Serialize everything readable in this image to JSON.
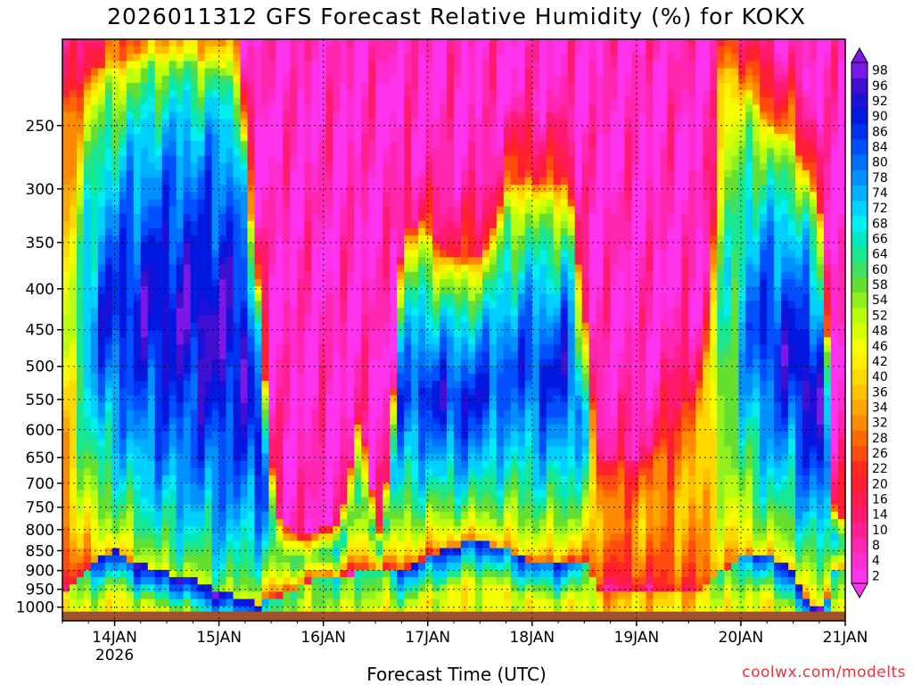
{
  "chart_data": {
    "type": "heatmap",
    "title": "2026011312 GFS Forecast Relative Humidity (%) for KOKX",
    "xlabel": "Forecast Time (UTC)",
    "ylabel": "",
    "x_ticks": [
      "14JAN",
      "15JAN",
      "16JAN",
      "17JAN",
      "18JAN",
      "19JAN",
      "20JAN",
      "21JAN"
    ],
    "x_year": "2026",
    "x_range_days": [
      13.5,
      21.0
    ],
    "y_scale": "log-pressure",
    "y_range": [
      1040,
      195
    ],
    "y_ticks": [
      250,
      300,
      350,
      400,
      450,
      500,
      550,
      600,
      650,
      700,
      750,
      800,
      850,
      900,
      950,
      1000
    ],
    "grid": true,
    "colorbar_levels": [
      2,
      4,
      8,
      10,
      14,
      16,
      20,
      22,
      26,
      28,
      32,
      34,
      36,
      40,
      42,
      46,
      48,
      52,
      54,
      58,
      60,
      64,
      66,
      68,
      72,
      74,
      78,
      80,
      84,
      86,
      90,
      92,
      96,
      98
    ],
    "colorbar_colors": [
      "#ff33ee",
      "#ff2ccf",
      "#ff26b0",
      "#ff1f8f",
      "#ff1a6e",
      "#ff1a4f",
      "#ff1f33",
      "#ff2a1f",
      "#ff4a10",
      "#ff6a00",
      "#ff8a00",
      "#ffa500",
      "#ffc000",
      "#ffd800",
      "#fff000",
      "#f4ff00",
      "#d8ff00",
      "#b8ff10",
      "#90f020",
      "#66e030",
      "#40e060",
      "#1ae890",
      "#00e8c0",
      "#00f0f0",
      "#00d0ff",
      "#00b0ff",
      "#0090ff",
      "#0070ff",
      "#0050ff",
      "#0030f0",
      "#0018e0",
      "#1a10d8",
      "#4010d0",
      "#7a18e8"
    ],
    "ground_color": "#a0522d",
    "columns": [
      {
        "d": 13.55,
        "lo": 12,
        "hi": 42,
        "wet_bot": 950,
        "wet_top": 230
      },
      {
        "d": 13.7,
        "lo": 18,
        "hi": 70,
        "wet_bot": 900,
        "wet_top": 220
      },
      {
        "d": 13.85,
        "lo": 24,
        "hi": 84,
        "wet_bot": 870,
        "wet_top": 210
      },
      {
        "d": 14.0,
        "lo": 30,
        "hi": 88,
        "wet_bot": 850,
        "wet_top": 210
      },
      {
        "d": 14.2,
        "lo": 34,
        "hi": 90,
        "wet_bot": 880,
        "wet_top": 205
      },
      {
        "d": 14.4,
        "lo": 40,
        "hi": 92,
        "wet_bot": 900,
        "wet_top": 205
      },
      {
        "d": 14.6,
        "lo": 44,
        "hi": 92,
        "wet_bot": 910,
        "wet_top": 205
      },
      {
        "d": 14.8,
        "lo": 40,
        "hi": 94,
        "wet_bot": 930,
        "wet_top": 205
      },
      {
        "d": 15.0,
        "lo": 46,
        "hi": 94,
        "wet_bot": 960,
        "wet_top": 210
      },
      {
        "d": 15.2,
        "lo": 44,
        "hi": 92,
        "wet_bot": 970,
        "wet_top": 220
      },
      {
        "d": 15.4,
        "lo": 28,
        "hi": 90,
        "wet_bot": 990,
        "wet_top": 420
      },
      {
        "d": 15.55,
        "lo": 10,
        "hi": 60,
        "wet_bot": 970,
        "wet_top": 760
      },
      {
        "d": 15.75,
        "lo": 4,
        "hi": 56,
        "wet_bot": 950,
        "wet_top": 820
      },
      {
        "d": 15.95,
        "lo": 4,
        "hi": 60,
        "wet_bot": 920,
        "wet_top": 800
      },
      {
        "d": 16.15,
        "lo": 4,
        "hi": 64,
        "wet_bot": 920,
        "wet_top": 790
      },
      {
        "d": 16.35,
        "lo": 6,
        "hi": 62,
        "wet_bot": 900,
        "wet_top": 560
      },
      {
        "d": 16.55,
        "lo": 6,
        "hi": 58,
        "wet_bot": 900,
        "wet_top": 820
      },
      {
        "d": 16.75,
        "lo": 12,
        "hi": 84,
        "wet_bot": 900,
        "wet_top": 340
      },
      {
        "d": 16.95,
        "lo": 16,
        "hi": 86,
        "wet_bot": 870,
        "wet_top": 330
      },
      {
        "d": 17.15,
        "lo": 16,
        "hi": 88,
        "wet_bot": 850,
        "wet_top": 360
      },
      {
        "d": 17.35,
        "lo": 20,
        "hi": 88,
        "wet_bot": 830,
        "wet_top": 370
      },
      {
        "d": 17.55,
        "lo": 22,
        "hi": 86,
        "wet_bot": 830,
        "wet_top": 360
      },
      {
        "d": 17.75,
        "lo": 24,
        "hi": 82,
        "wet_bot": 850,
        "wet_top": 300
      },
      {
        "d": 17.95,
        "lo": 24,
        "hi": 84,
        "wet_bot": 870,
        "wet_top": 290
      },
      {
        "d": 18.15,
        "lo": 22,
        "hi": 86,
        "wet_bot": 880,
        "wet_top": 300
      },
      {
        "d": 18.35,
        "lo": 20,
        "hi": 88,
        "wet_bot": 870,
        "wet_top": 290
      },
      {
        "d": 18.5,
        "lo": 14,
        "hi": 70,
        "wet_bot": 880,
        "wet_top": 420
      },
      {
        "d": 18.65,
        "lo": 10,
        "hi": 30,
        "wet_bot": 950,
        "wet_top": 650
      },
      {
        "d": 18.85,
        "lo": 8,
        "hi": 30,
        "wet_bot": 950,
        "wet_top": 650
      },
      {
        "d": 19.05,
        "lo": 10,
        "hi": 34,
        "wet_bot": 950,
        "wet_top": 650
      },
      {
        "d": 19.25,
        "lo": 14,
        "hi": 32,
        "wet_bot": 950,
        "wet_top": 620
      },
      {
        "d": 19.45,
        "lo": 18,
        "hi": 34,
        "wet_bot": 950,
        "wet_top": 550
      },
      {
        "d": 19.65,
        "lo": 20,
        "hi": 36,
        "wet_bot": 950,
        "wet_top": 520
      },
      {
        "d": 19.8,
        "lo": 26,
        "hi": 60,
        "wet_bot": 900,
        "wet_top": 210
      },
      {
        "d": 19.95,
        "lo": 28,
        "hi": 66,
        "wet_bot": 880,
        "wet_top": 210
      },
      {
        "d": 20.1,
        "lo": 30,
        "hi": 82,
        "wet_bot": 850,
        "wet_top": 230
      },
      {
        "d": 20.3,
        "lo": 30,
        "hi": 88,
        "wet_bot": 870,
        "wet_top": 250
      },
      {
        "d": 20.5,
        "lo": 28,
        "hi": 90,
        "wet_bot": 900,
        "wet_top": 260
      },
      {
        "d": 20.65,
        "lo": 26,
        "hi": 94,
        "wet_bot": 1000,
        "wet_top": 290
      },
      {
        "d": 20.8,
        "lo": 20,
        "hi": 92,
        "wet_bot": 1000,
        "wet_top": 330
      },
      {
        "d": 20.9,
        "lo": 14,
        "hi": 66,
        "wet_bot": 900,
        "wet_top": 760
      },
      {
        "d": 21.0,
        "lo": 12,
        "hi": 56,
        "wet_bot": 900,
        "wet_top": 780
      }
    ]
  },
  "page": {
    "title": "2026011312 GFS Forecast Relative Humidity (%) for KOKX",
    "xlabel": "Forecast Time (UTC)",
    "credit": "coolwx.com/modelts"
  }
}
